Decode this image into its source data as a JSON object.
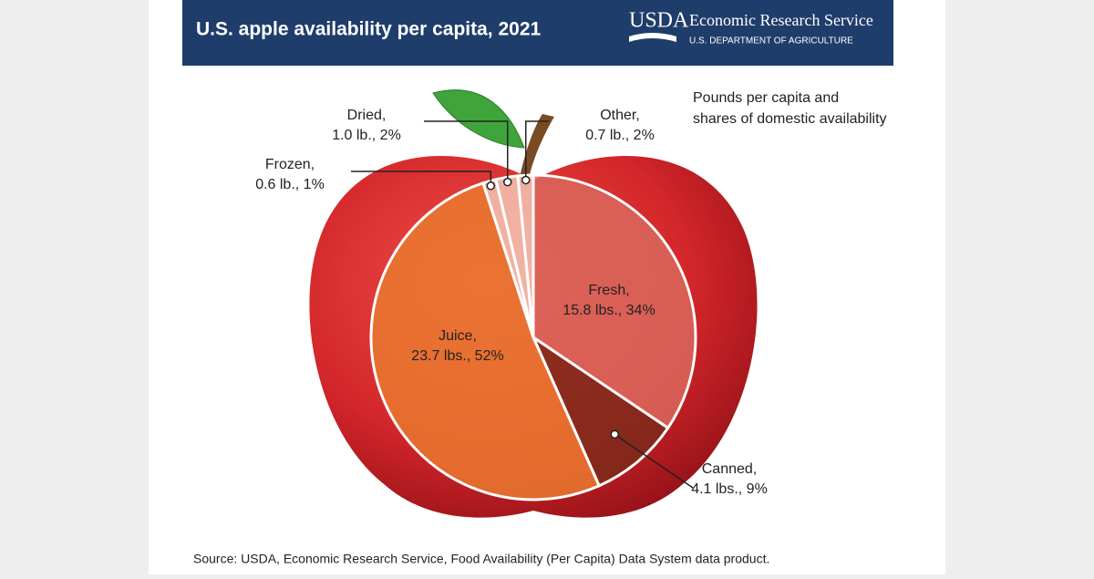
{
  "header": {
    "title": "U.S. apple availability per capita, 2021",
    "logo": "USDA",
    "agency": "Economic Research Service",
    "department": "U.S. DEPARTMENT OF AGRICULTURE"
  },
  "chart_data": {
    "type": "pie",
    "note": [
      "Pounds per capita and",
      "shares of domestic availability"
    ],
    "categories": [
      "Fresh,",
      "Canned,",
      "Juice,",
      "Frozen,",
      "Dried,",
      "Other,"
    ],
    "values": [
      15.8,
      4.1,
      23.7,
      0.6,
      1.0,
      0.7
    ],
    "value_labels": [
      "15.8 lbs., 34%",
      "4.1 lbs., 9%",
      "23.7 lbs., 52%",
      "0.6 lb., 1%",
      "1.0 lb., 2%",
      "0.7 lb., 2%"
    ],
    "colors": [
      "#d9675c",
      "#7b2a1a",
      "#e9792f",
      "#f2c4b4",
      "#f2c4b4",
      "#f2c4b4"
    ],
    "source": "Source: USDA, Economic Research Service, Food Availability (Per Capita) Data System data product."
  }
}
